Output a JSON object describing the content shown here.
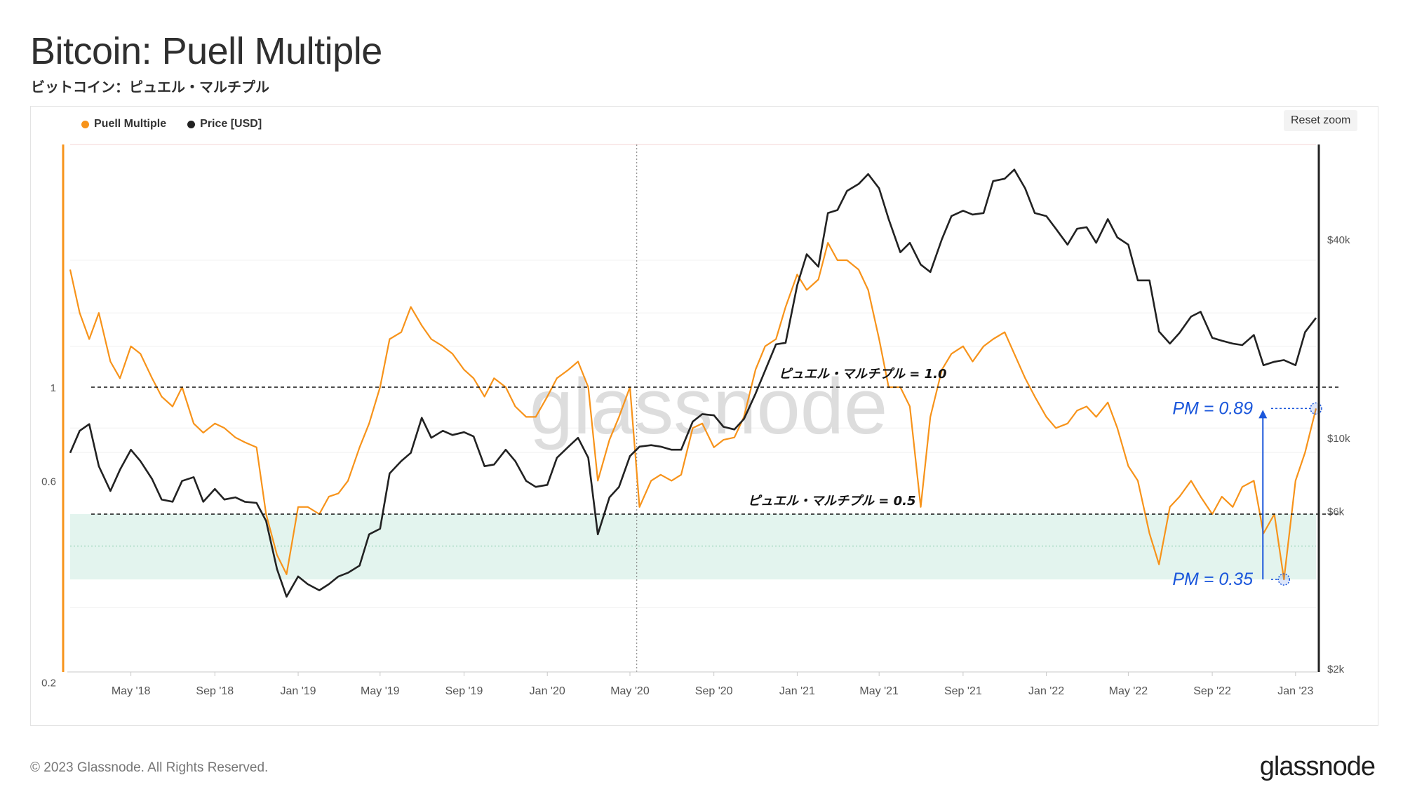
{
  "header": {
    "title": "Bitcoin: Puell Multiple",
    "subtitle": "ビットコイン：ピュエル・マルチプル"
  },
  "toolbar": {
    "reset_zoom_label": "Reset zoom"
  },
  "footer": {
    "copyright": "© 2023 Glassnode. All Rights Reserved.",
    "logo_text": "glassnode"
  },
  "watermark": "glassnode",
  "colors": {
    "puell": "#f7931a",
    "price": "#222222",
    "zone": "#e3f4ee",
    "annotation": "#1a56db"
  },
  "chart_data": {
    "type": "line",
    "xlim": [
      "2018-02-01",
      "2023-01-31"
    ],
    "x_ticks": [
      {
        "date": "2018-05-01",
        "label": "May '18"
      },
      {
        "date": "2018-09-01",
        "label": "Sep '18"
      },
      {
        "date": "2019-01-01",
        "label": "Jan '19"
      },
      {
        "date": "2019-05-01",
        "label": "May '19"
      },
      {
        "date": "2019-09-01",
        "label": "Sep '19"
      },
      {
        "date": "2020-01-01",
        "label": "Jan '20"
      },
      {
        "date": "2020-05-01",
        "label": "May '20"
      },
      {
        "date": "2020-09-01",
        "label": "Sep '20"
      },
      {
        "date": "2021-01-01",
        "label": "Jan '21"
      },
      {
        "date": "2021-05-01",
        "label": "May '21"
      },
      {
        "date": "2021-09-01",
        "label": "Sep '21"
      },
      {
        "date": "2022-01-01",
        "label": "Jan '22"
      },
      {
        "date": "2022-05-01",
        "label": "May '22"
      },
      {
        "date": "2022-09-01",
        "label": "Sep '22"
      },
      {
        "date": "2023-01-01",
        "label": "Jan '23"
      }
    ],
    "y_left": {
      "scale": "log",
      "ticks": [
        {
          "value": 0.2,
          "label": "0.2"
        },
        {
          "value": 0.6,
          "label": "0.6"
        },
        {
          "value": 1,
          "label": "1"
        }
      ]
    },
    "y_right": {
      "scale": "log",
      "ticks": [
        {
          "value": 2000,
          "label": "$2k"
        },
        {
          "value": 6000,
          "label": "$6k"
        },
        {
          "value": 10000,
          "label": "$10k"
        },
        {
          "value": 40000,
          "label": "$40k"
        }
      ]
    },
    "legend": {
      "placement": "top-left"
    },
    "series": [
      {
        "name": "Puell Multiple",
        "axis": "left",
        "color": "#f7931a",
        "points": [
          [
            "2018-02-01",
            1.9
          ],
          [
            "2018-02-15",
            1.5
          ],
          [
            "2018-03-01",
            1.3
          ],
          [
            "2018-03-15",
            1.5
          ],
          [
            "2018-04-01",
            1.15
          ],
          [
            "2018-04-15",
            1.05
          ],
          [
            "2018-05-01",
            1.25
          ],
          [
            "2018-05-15",
            1.2
          ],
          [
            "2018-06-01",
            1.05
          ],
          [
            "2018-06-15",
            0.95
          ],
          [
            "2018-07-01",
            0.9
          ],
          [
            "2018-07-15",
            1.0
          ],
          [
            "2018-08-01",
            0.82
          ],
          [
            "2018-08-15",
            0.78
          ],
          [
            "2018-09-01",
            0.82
          ],
          [
            "2018-09-15",
            0.8
          ],
          [
            "2018-10-01",
            0.76
          ],
          [
            "2018-10-15",
            0.74
          ],
          [
            "2018-11-01",
            0.72
          ],
          [
            "2018-11-15",
            0.5
          ],
          [
            "2018-12-01",
            0.4
          ],
          [
            "2018-12-15",
            0.36
          ],
          [
            "2019-01-01",
            0.52
          ],
          [
            "2019-01-15",
            0.52
          ],
          [
            "2019-02-01",
            0.5
          ],
          [
            "2019-02-15",
            0.55
          ],
          [
            "2019-03-01",
            0.56
          ],
          [
            "2019-03-15",
            0.6
          ],
          [
            "2019-04-01",
            0.72
          ],
          [
            "2019-04-15",
            0.82
          ],
          [
            "2019-05-01",
            1.0
          ],
          [
            "2019-05-15",
            1.3
          ],
          [
            "2019-06-01",
            1.35
          ],
          [
            "2019-06-15",
            1.55
          ],
          [
            "2019-07-01",
            1.4
          ],
          [
            "2019-07-15",
            1.3
          ],
          [
            "2019-08-01",
            1.25
          ],
          [
            "2019-08-15",
            1.2
          ],
          [
            "2019-09-01",
            1.1
          ],
          [
            "2019-09-15",
            1.05
          ],
          [
            "2019-10-01",
            0.95
          ],
          [
            "2019-10-15",
            1.05
          ],
          [
            "2019-11-01",
            1.0
          ],
          [
            "2019-11-15",
            0.9
          ],
          [
            "2019-12-01",
            0.85
          ],
          [
            "2019-12-15",
            0.85
          ],
          [
            "2020-01-01",
            0.95
          ],
          [
            "2020-01-15",
            1.05
          ],
          [
            "2020-02-01",
            1.1
          ],
          [
            "2020-02-15",
            1.15
          ],
          [
            "2020-03-01",
            1.0
          ],
          [
            "2020-03-15",
            0.6
          ],
          [
            "2020-04-01",
            0.75
          ],
          [
            "2020-04-15",
            0.85
          ],
          [
            "2020-05-01",
            1.0
          ],
          [
            "2020-05-15",
            0.52
          ],
          [
            "2020-06-01",
            0.6
          ],
          [
            "2020-06-15",
            0.62
          ],
          [
            "2020-07-01",
            0.6
          ],
          [
            "2020-07-15",
            0.62
          ],
          [
            "2020-08-01",
            0.8
          ],
          [
            "2020-08-15",
            0.82
          ],
          [
            "2020-09-01",
            0.72
          ],
          [
            "2020-09-15",
            0.75
          ],
          [
            "2020-10-01",
            0.76
          ],
          [
            "2020-10-15",
            0.85
          ],
          [
            "2020-11-01",
            1.1
          ],
          [
            "2020-11-15",
            1.25
          ],
          [
            "2020-12-01",
            1.3
          ],
          [
            "2020-12-15",
            1.55
          ],
          [
            "2021-01-01",
            1.85
          ],
          [
            "2021-01-15",
            1.7
          ],
          [
            "2021-02-01",
            1.8
          ],
          [
            "2021-02-15",
            2.2
          ],
          [
            "2021-03-01",
            2.0
          ],
          [
            "2021-03-15",
            2.0
          ],
          [
            "2021-04-01",
            1.9
          ],
          [
            "2021-04-15",
            1.7
          ],
          [
            "2021-05-01",
            1.3
          ],
          [
            "2021-05-15",
            1.0
          ],
          [
            "2021-06-01",
            1.0
          ],
          [
            "2021-06-15",
            0.9
          ],
          [
            "2021-07-01",
            0.52
          ],
          [
            "2021-07-15",
            0.85
          ],
          [
            "2021-08-01",
            1.1
          ],
          [
            "2021-08-15",
            1.2
          ],
          [
            "2021-09-01",
            1.25
          ],
          [
            "2021-09-15",
            1.15
          ],
          [
            "2021-10-01",
            1.25
          ],
          [
            "2021-10-15",
            1.3
          ],
          [
            "2021-11-01",
            1.35
          ],
          [
            "2021-11-15",
            1.2
          ],
          [
            "2021-12-01",
            1.05
          ],
          [
            "2021-12-15",
            0.95
          ],
          [
            "2022-01-01",
            0.85
          ],
          [
            "2022-01-15",
            0.8
          ],
          [
            "2022-02-01",
            0.82
          ],
          [
            "2022-02-15",
            0.88
          ],
          [
            "2022-03-01",
            0.9
          ],
          [
            "2022-03-15",
            0.85
          ],
          [
            "2022-04-01",
            0.92
          ],
          [
            "2022-04-15",
            0.8
          ],
          [
            "2022-05-01",
            0.65
          ],
          [
            "2022-05-15",
            0.6
          ],
          [
            "2022-06-01",
            0.45
          ],
          [
            "2022-06-15",
            0.38
          ],
          [
            "2022-07-01",
            0.52
          ],
          [
            "2022-07-15",
            0.55
          ],
          [
            "2022-08-01",
            0.6
          ],
          [
            "2022-08-15",
            0.55
          ],
          [
            "2022-09-01",
            0.5
          ],
          [
            "2022-09-15",
            0.55
          ],
          [
            "2022-10-01",
            0.52
          ],
          [
            "2022-10-15",
            0.58
          ],
          [
            "2022-11-01",
            0.6
          ],
          [
            "2022-11-15",
            0.45
          ],
          [
            "2022-12-01",
            0.5
          ],
          [
            "2022-12-15",
            0.35
          ],
          [
            "2023-01-01",
            0.6
          ],
          [
            "2023-01-15",
            0.7
          ],
          [
            "2023-01-31",
            0.89
          ]
        ]
      },
      {
        "name": "Price [USD]",
        "axis": "right",
        "color": "#222222",
        "points": [
          [
            "2018-02-01",
            9000
          ],
          [
            "2018-02-15",
            10500
          ],
          [
            "2018-03-01",
            11000
          ],
          [
            "2018-03-15",
            8200
          ],
          [
            "2018-04-01",
            6900
          ],
          [
            "2018-04-15",
            8000
          ],
          [
            "2018-05-01",
            9200
          ],
          [
            "2018-05-15",
            8500
          ],
          [
            "2018-06-01",
            7500
          ],
          [
            "2018-06-15",
            6500
          ],
          [
            "2018-07-01",
            6400
          ],
          [
            "2018-07-15",
            7400
          ],
          [
            "2018-08-01",
            7600
          ],
          [
            "2018-08-15",
            6400
          ],
          [
            "2018-09-01",
            7000
          ],
          [
            "2018-09-15",
            6500
          ],
          [
            "2018-10-01",
            6600
          ],
          [
            "2018-10-15",
            6400
          ],
          [
            "2018-11-01",
            6350
          ],
          [
            "2018-11-15",
            5600
          ],
          [
            "2018-12-01",
            4000
          ],
          [
            "2018-12-15",
            3300
          ],
          [
            "2019-01-01",
            3800
          ],
          [
            "2019-01-15",
            3600
          ],
          [
            "2019-02-01",
            3450
          ],
          [
            "2019-02-15",
            3600
          ],
          [
            "2019-03-01",
            3800
          ],
          [
            "2019-03-15",
            3900
          ],
          [
            "2019-04-01",
            4100
          ],
          [
            "2019-04-15",
            5100
          ],
          [
            "2019-05-01",
            5300
          ],
          [
            "2019-05-15",
            7800
          ],
          [
            "2019-06-01",
            8500
          ],
          [
            "2019-06-15",
            9000
          ],
          [
            "2019-07-01",
            11500
          ],
          [
            "2019-07-15",
            10000
          ],
          [
            "2019-08-01",
            10500
          ],
          [
            "2019-08-15",
            10200
          ],
          [
            "2019-09-01",
            10400
          ],
          [
            "2019-09-15",
            10100
          ],
          [
            "2019-10-01",
            8200
          ],
          [
            "2019-10-15",
            8300
          ],
          [
            "2019-11-01",
            9200
          ],
          [
            "2019-11-15",
            8500
          ],
          [
            "2019-12-01",
            7400
          ],
          [
            "2019-12-15",
            7100
          ],
          [
            "2020-01-01",
            7200
          ],
          [
            "2020-01-15",
            8700
          ],
          [
            "2020-02-01",
            9400
          ],
          [
            "2020-02-15",
            10000
          ],
          [
            "2020-03-01",
            8700
          ],
          [
            "2020-03-15",
            5100
          ],
          [
            "2020-04-01",
            6600
          ],
          [
            "2020-04-15",
            7100
          ],
          [
            "2020-05-01",
            8800
          ],
          [
            "2020-05-15",
            9400
          ],
          [
            "2020-06-01",
            9500
          ],
          [
            "2020-06-15",
            9400
          ],
          [
            "2020-07-01",
            9200
          ],
          [
            "2020-07-15",
            9200
          ],
          [
            "2020-08-01",
            11200
          ],
          [
            "2020-08-15",
            11800
          ],
          [
            "2020-09-01",
            11700
          ],
          [
            "2020-09-15",
            10800
          ],
          [
            "2020-10-01",
            10600
          ],
          [
            "2020-10-15",
            11400
          ],
          [
            "2020-11-01",
            13600
          ],
          [
            "2020-11-15",
            16000
          ],
          [
            "2020-12-01",
            19200
          ],
          [
            "2020-12-15",
            19400
          ],
          [
            "2021-01-01",
            29000
          ],
          [
            "2021-01-15",
            36000
          ],
          [
            "2021-02-01",
            33000
          ],
          [
            "2021-02-15",
            48000
          ],
          [
            "2021-03-01",
            49000
          ],
          [
            "2021-03-15",
            56000
          ],
          [
            "2021-04-01",
            58800
          ],
          [
            "2021-04-15",
            63000
          ],
          [
            "2021-05-01",
            57000
          ],
          [
            "2021-05-15",
            46000
          ],
          [
            "2021-06-01",
            36500
          ],
          [
            "2021-06-15",
            39000
          ],
          [
            "2021-07-01",
            33500
          ],
          [
            "2021-07-15",
            31800
          ],
          [
            "2021-08-01",
            40000
          ],
          [
            "2021-08-15",
            47000
          ],
          [
            "2021-09-01",
            48800
          ],
          [
            "2021-09-15",
            47500
          ],
          [
            "2021-10-01",
            48000
          ],
          [
            "2021-10-15",
            60000
          ],
          [
            "2021-11-01",
            61000
          ],
          [
            "2021-11-15",
            65000
          ],
          [
            "2021-12-01",
            57000
          ],
          [
            "2021-12-15",
            48000
          ],
          [
            "2022-01-01",
            47000
          ],
          [
            "2022-01-15",
            43000
          ],
          [
            "2022-02-01",
            38500
          ],
          [
            "2022-02-15",
            43000
          ],
          [
            "2022-03-01",
            43500
          ],
          [
            "2022-03-15",
            39000
          ],
          [
            "2022-04-01",
            46000
          ],
          [
            "2022-04-15",
            40500
          ],
          [
            "2022-05-01",
            38500
          ],
          [
            "2022-05-15",
            30000
          ],
          [
            "2022-06-01",
            30000
          ],
          [
            "2022-06-15",
            21000
          ],
          [
            "2022-07-01",
            19300
          ],
          [
            "2022-07-15",
            20800
          ],
          [
            "2022-08-01",
            23300
          ],
          [
            "2022-08-15",
            24100
          ],
          [
            "2022-09-01",
            20100
          ],
          [
            "2022-09-15",
            19700
          ],
          [
            "2022-10-01",
            19300
          ],
          [
            "2022-10-15",
            19100
          ],
          [
            "2022-11-01",
            20500
          ],
          [
            "2022-11-15",
            16600
          ],
          [
            "2022-12-01",
            17000
          ],
          [
            "2022-12-15",
            17200
          ],
          [
            "2023-01-01",
            16600
          ],
          [
            "2023-01-15",
            20900
          ],
          [
            "2023-01-31",
            23100
          ]
        ]
      }
    ],
    "reference_lines": [
      {
        "value": 1.0,
        "label": "ピュエル・マルチプル = 1.0"
      },
      {
        "value": 0.5,
        "label": "ピュエル・マルチプル = 0.5"
      }
    ],
    "shaded_band": {
      "from": 0.35,
      "to": 0.5
    },
    "annotations": [
      {
        "text": "PM = 0.89",
        "date": "2023-01-31",
        "value": 0.89
      },
      {
        "text": "PM = 0.35",
        "date": "2022-12-15",
        "value": 0.35
      }
    ],
    "vertical_marker": "2020-05-11"
  }
}
